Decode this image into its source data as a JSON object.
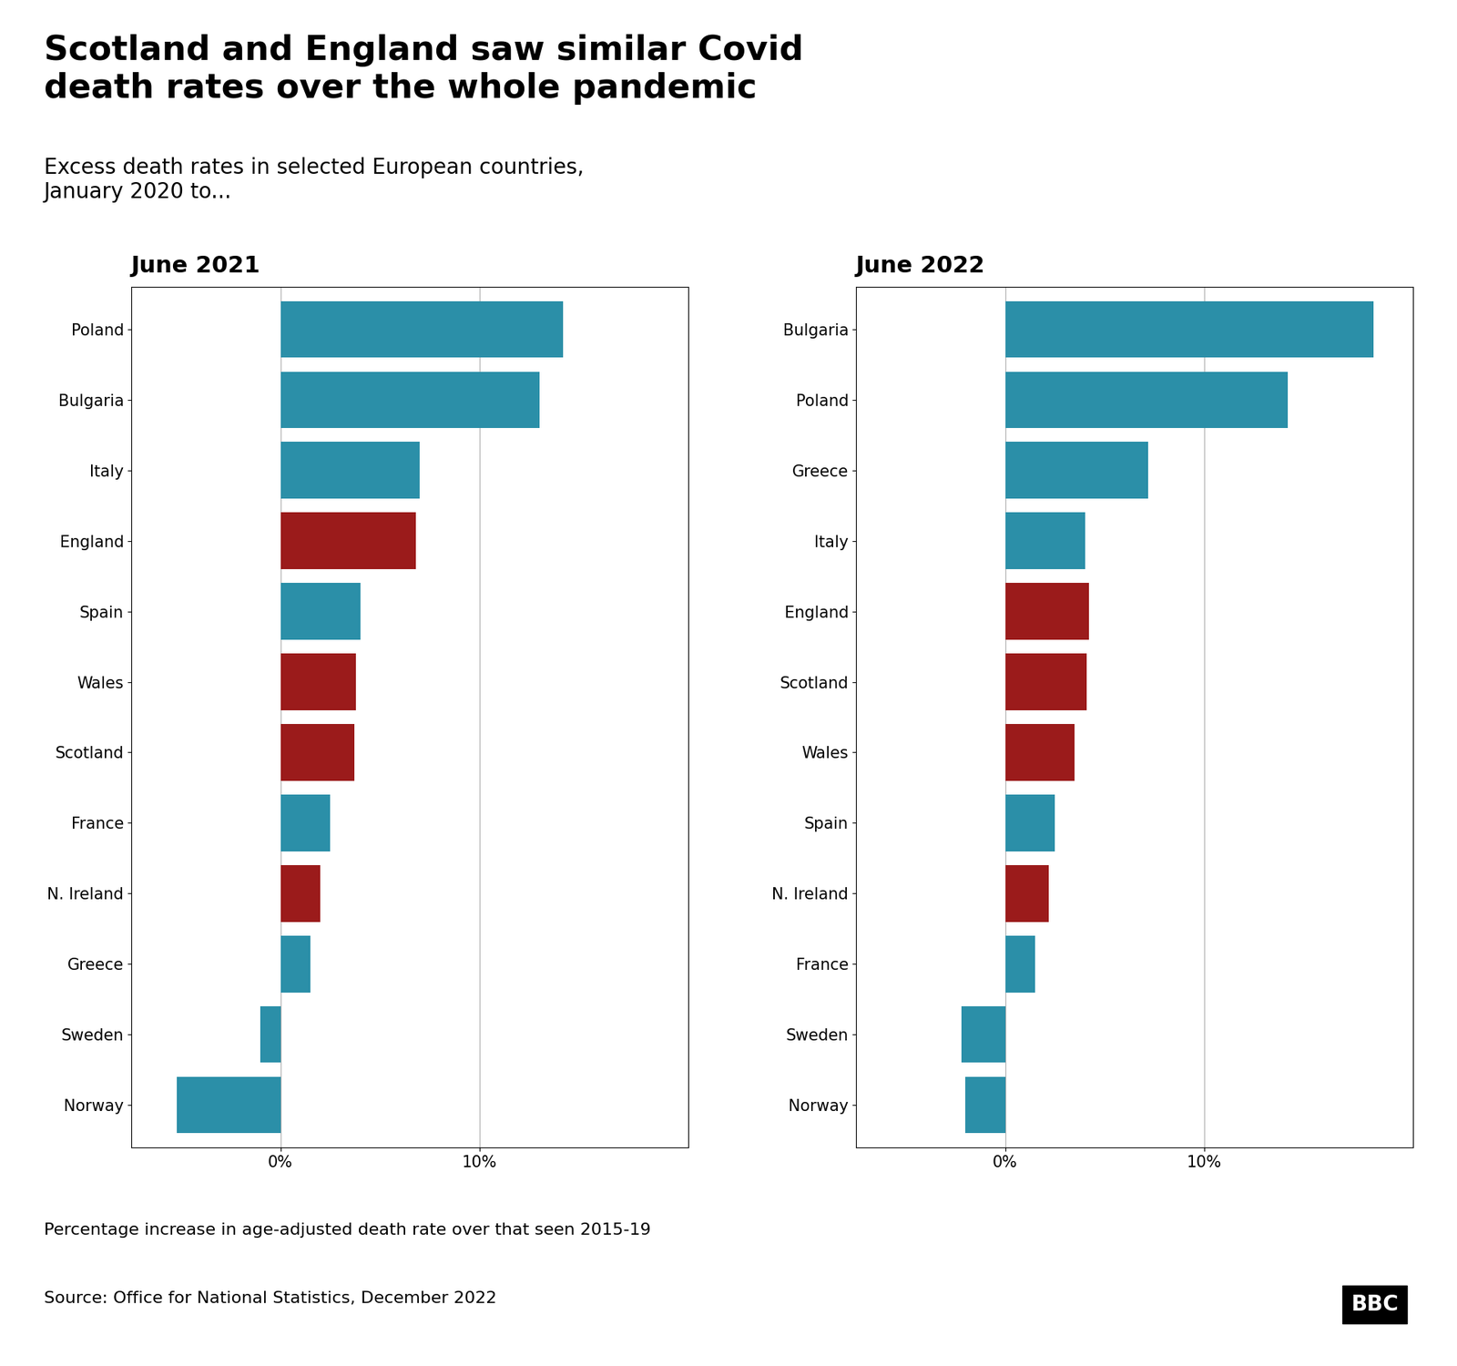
{
  "title": "Scotland and England saw similar Covid\ndeath rates over the whole pandemic",
  "subtitle": "Excess death rates in selected European countries,\nJanuary 2020 to...",
  "annotations": [
    "Percentage increase in age-adjusted death rate over that seen 2015-19",
    "Source: Office for National Statistics, December 2022",
    "BBC"
  ],
  "chart_data": [
    {
      "type": "bar",
      "orientation": "horizontal",
      "title": "June 2021",
      "categories": [
        "Poland",
        "Bulgaria",
        "Italy",
        "England",
        "Spain",
        "Wales",
        "Scotland",
        "France",
        "N. Ireland",
        "Greece",
        "Sweden",
        "Norway"
      ],
      "values": [
        14.2,
        13.0,
        7.0,
        6.8,
        4.0,
        3.8,
        3.7,
        2.5,
        2.0,
        1.5,
        -1.0,
        -5.2
      ],
      "colors": [
        "#2b8fa8",
        "#2b8fa8",
        "#2b8fa8",
        "#9b1b1b",
        "#2b8fa8",
        "#9b1b1b",
        "#9b1b1b",
        "#2b8fa8",
        "#9b1b1b",
        "#2b8fa8",
        "#2b8fa8",
        "#2b8fa8"
      ],
      "xlim": [
        -7.5,
        20.5
      ],
      "xticks": [
        {
          "value": 0,
          "label": "0%"
        },
        {
          "value": 10,
          "label": "10%"
        }
      ],
      "grid": true
    },
    {
      "type": "bar",
      "orientation": "horizontal",
      "title": "June 2022",
      "categories": [
        "Bulgaria",
        "Poland",
        "Greece",
        "Italy",
        "England",
        "Scotland",
        "Wales",
        "Spain",
        "N. Ireland",
        "France",
        "Sweden",
        "Norway"
      ],
      "values": [
        18.5,
        14.2,
        7.2,
        4.0,
        4.2,
        4.1,
        3.5,
        2.5,
        2.2,
        1.5,
        -2.2,
        -2.0
      ],
      "colors": [
        "#2b8fa8",
        "#2b8fa8",
        "#2b8fa8",
        "#2b8fa8",
        "#9b1b1b",
        "#9b1b1b",
        "#9b1b1b",
        "#2b8fa8",
        "#9b1b1b",
        "#2b8fa8",
        "#2b8fa8",
        "#2b8fa8"
      ],
      "xlim": [
        -7.5,
        20.5
      ],
      "xticks": [
        {
          "value": 0,
          "label": "0%"
        },
        {
          "value": 10,
          "label": "10%"
        }
      ],
      "grid": true
    }
  ]
}
